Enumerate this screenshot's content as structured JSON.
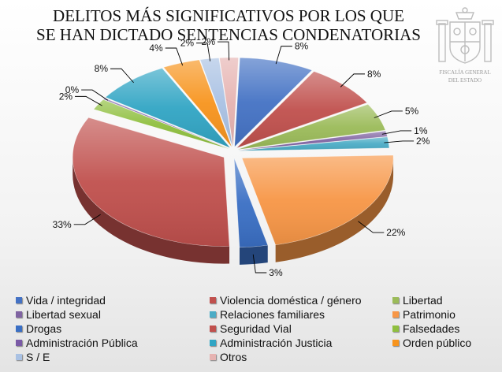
{
  "title_line1": "DELITOS MÁS SIGNIFICATIVOS POR LOS QUE",
  "title_line2": "SE HAN DICTADO SENTENCIAS CONDENATORIAS",
  "logo_text_line1": "FISCALÍA GENERAL",
  "logo_text_line2": "DEL ESTADO",
  "chart_data": {
    "type": "pie",
    "title": "DELITOS MÁS SIGNIFICATIVOS POR LOS QUE SE HAN DICTADO SENTENCIAS CONDENATORIAS",
    "legend_position": "bottom",
    "slices": [
      {
        "name": "Vida / integridad",
        "value": 8,
        "label": "8%",
        "color": "#4472c4"
      },
      {
        "name": "Violencia doméstica / género",
        "value": 8,
        "label": "8%",
        "color": "#c0504d"
      },
      {
        "name": "Libertad",
        "value": 5,
        "label": "5%",
        "color": "#9bbb59"
      },
      {
        "name": "Libertad sexual",
        "value": 1,
        "label": "1%",
        "color": "#8064a2"
      },
      {
        "name": "Relaciones familiares",
        "value": 2,
        "label": "2%",
        "color": "#4bacc6"
      },
      {
        "name": "Patrimonio",
        "value": 22,
        "label": "22%",
        "color": "#f79646"
      },
      {
        "name": "Drogas",
        "value": 3,
        "label": "3%",
        "color": "#3a6fc4"
      },
      {
        "name": "Seguridad Vial",
        "value": 33,
        "label": "33%",
        "color": "#c0504d"
      },
      {
        "name": "Falsedades",
        "value": 2,
        "label": "2%",
        "color": "#8fbf3f"
      },
      {
        "name": "Administración Pública",
        "value": 0,
        "label": "0%",
        "color": "#7a5aa6"
      },
      {
        "name": "Administración Justicia",
        "value": 8,
        "label": "8%",
        "color": "#31a5c4"
      },
      {
        "name": "Orden público",
        "value": 4,
        "label": "4%",
        "color": "#f7941d"
      },
      {
        "name": "S / E",
        "value": 2,
        "label": "2%",
        "color": "#a9c1e3"
      },
      {
        "name": "Otros",
        "value": 2,
        "label": "2%",
        "color": "#e6b3b1"
      }
    ]
  }
}
